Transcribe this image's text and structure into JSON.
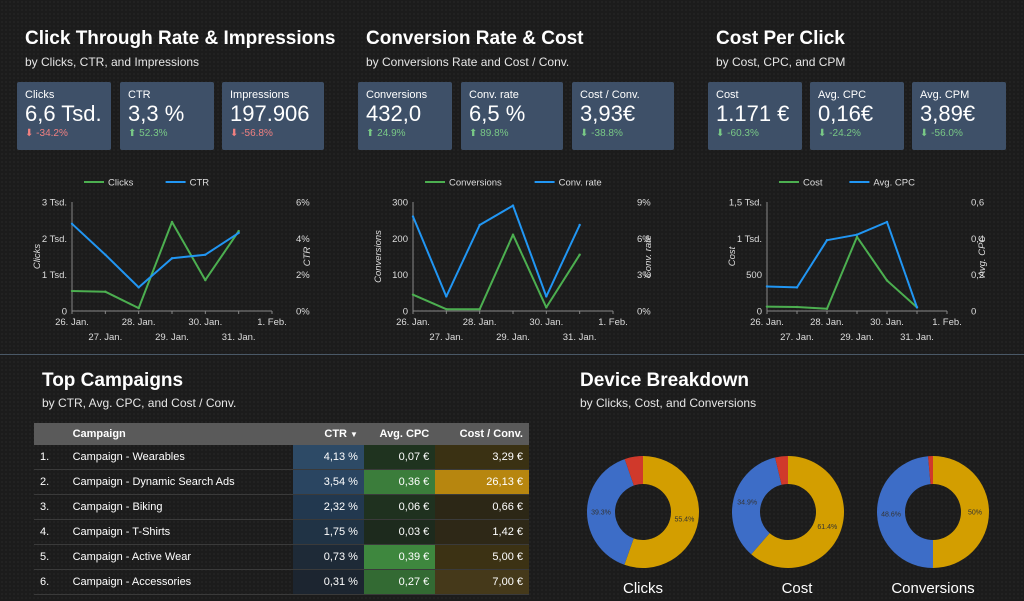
{
  "sections": {
    "ctr": {
      "title": "Click Through Rate & Impressions",
      "subtitle": "by Clicks, CTR, and Impressions"
    },
    "conv": {
      "title": "Conversion Rate & Cost",
      "subtitle": "by Conversions Rate and Cost / Conv."
    },
    "cpc": {
      "title": "Cost Per Click",
      "subtitle": "by Cost, CPC, and CPM"
    },
    "campaigns": {
      "title": "Top Campaigns",
      "subtitle": "by CTR, Avg. CPC, and Cost / Conv."
    },
    "device": {
      "title": "Device Breakdown",
      "subtitle": "by Clicks, Cost, and Conversions"
    }
  },
  "kpis": [
    {
      "label": "Clicks",
      "value": "6,6 Tsd.",
      "change": "-34.2%",
      "trend": "down",
      "color": "#f08080"
    },
    {
      "label": "CTR",
      "value": "3,3 %",
      "change": "52.3%",
      "trend": "up",
      "color": "#79c986"
    },
    {
      "label": "Impressions",
      "value": "197.906",
      "change": "-56.8%",
      "trend": "down",
      "color": "#f08080"
    },
    {
      "label": "Conversions",
      "value": "432,0",
      "change": "24.9%",
      "trend": "up",
      "color": "#79c986"
    },
    {
      "label": "Conv. rate",
      "value": "6,5 %",
      "change": "89.8%",
      "trend": "up",
      "color": "#79c986"
    },
    {
      "label": "Cost / Conv.",
      "value": "3,93€",
      "change": "-38.8%",
      "trend": "down",
      "color": "#79c986"
    },
    {
      "label": "Cost",
      "value": "1.171 €",
      "change": "-60.3%",
      "trend": "down",
      "color": "#79c986"
    },
    {
      "label": "Avg. CPC",
      "value": "0,16€",
      "change": "-24.2%",
      "trend": "down",
      "color": "#79c986"
    },
    {
      "label": "Avg. CPM",
      "value": "3,89€",
      "change": "-56.0%",
      "trend": "down",
      "color": "#79c986"
    }
  ],
  "chart_data": [
    {
      "type": "line",
      "x": [
        "26. Jan.",
        "27. Jan.",
        "28. Jan.",
        "29. Jan.",
        "30. Jan.",
        "31. Jan.",
        "1. Feb."
      ],
      "x_ticks_top": [
        "26. Jan.",
        "28. Jan.",
        "30. Jan.",
        "1. Feb."
      ],
      "x_ticks_bottom": [
        "27. Jan.",
        "29. Jan.",
        "31. Jan."
      ],
      "ylabel": "Clicks",
      "ylabel_right": "CTR",
      "ylim": [
        0,
        3000
      ],
      "ylim_right": [
        0,
        6
      ],
      "y_ticks": [
        "0",
        "1 Tsd.",
        "2 Tsd.",
        "3 Tsd."
      ],
      "y_ticks_right": [
        "0%",
        "2%",
        "4%",
        "6%"
      ],
      "series": [
        {
          "name": "Clicks",
          "axis": "left",
          "color": "#4caf50",
          "x": [
            0,
            1,
            2,
            3,
            4,
            5
          ],
          "values": [
            550,
            530,
            80,
            2450,
            850,
            2200
          ]
        },
        {
          "name": "CTR",
          "axis": "right",
          "color": "#2196f3",
          "x": [
            0,
            1,
            2,
            3,
            4,
            5
          ],
          "values": [
            4.8,
            3.1,
            1.3,
            2.9,
            3.1,
            4.3
          ]
        }
      ]
    },
    {
      "type": "line",
      "x": [
        "26. Jan.",
        "27. Jan.",
        "28. Jan.",
        "29. Jan.",
        "30. Jan.",
        "31. Jan.",
        "1. Feb."
      ],
      "x_ticks_top": [
        "26. Jan.",
        "28. Jan.",
        "30. Jan.",
        "1. Feb."
      ],
      "x_ticks_bottom": [
        "27. Jan.",
        "29. Jan.",
        "31. Jan."
      ],
      "ylabel": "Conversions",
      "ylabel_right": "Conv. rate",
      "ylim": [
        0,
        300
      ],
      "ylim_right": [
        0,
        9
      ],
      "y_ticks": [
        "0",
        "100",
        "200",
        "300"
      ],
      "y_ticks_right": [
        "0%",
        "3%",
        "6%",
        "9%"
      ],
      "series": [
        {
          "name": "Conversions",
          "axis": "left",
          "color": "#4caf50",
          "x": [
            0,
            1,
            2,
            3,
            4,
            5
          ],
          "values": [
            45,
            5,
            5,
            210,
            10,
            155
          ]
        },
        {
          "name": "Conv. rate",
          "axis": "right",
          "color": "#2196f3",
          "x": [
            0,
            1,
            2,
            3,
            4,
            5
          ],
          "values": [
            7.8,
            1.2,
            7.1,
            8.7,
            1.2,
            7.1
          ]
        }
      ]
    },
    {
      "type": "line",
      "x": [
        "26. Jan.",
        "27. Jan.",
        "28. Jan.",
        "29. Jan.",
        "30. Jan.",
        "31. Jan.",
        "1. Feb."
      ],
      "x_ticks_top": [
        "26. Jan.",
        "28. Jan.",
        "30. Jan.",
        "1. Feb."
      ],
      "x_ticks_bottom": [
        "27. Jan.",
        "29. Jan.",
        "31. Jan."
      ],
      "ylabel": "Cost",
      "ylabel_right": "Avg. CPC",
      "ylim": [
        0,
        1500
      ],
      "ylim_right": [
        0,
        0.6
      ],
      "y_ticks": [
        "0",
        "500",
        "1 Tsd.",
        "1,5 Tsd."
      ],
      "y_ticks_right": [
        "0",
        "0,2",
        "0,4",
        "0,6"
      ],
      "series": [
        {
          "name": "Cost",
          "axis": "left",
          "color": "#4caf50",
          "x": [
            0,
            1,
            2,
            3,
            4,
            5
          ],
          "values": [
            60,
            55,
            30,
            1020,
            420,
            50
          ]
        },
        {
          "name": "Avg. CPC",
          "axis": "right",
          "color": "#2196f3",
          "x": [
            0,
            1,
            2,
            3,
            4,
            5
          ],
          "values": [
            0.135,
            0.13,
            0.39,
            0.42,
            0.49,
            0.02
          ]
        }
      ]
    },
    {
      "type": "pie",
      "name": "Clicks",
      "slices": [
        {
          "label": "55.4%",
          "value": 55.4,
          "color": "#d39e00"
        },
        {
          "label": "39.3%",
          "value": 39.3,
          "color": "#3d6dc7"
        },
        {
          "label": "",
          "value": 5.3,
          "color": "#d0392b"
        }
      ]
    },
    {
      "type": "pie",
      "name": "Cost",
      "slices": [
        {
          "label": "61.4%",
          "value": 61.4,
          "color": "#d39e00"
        },
        {
          "label": "34.9%",
          "value": 34.9,
          "color": "#3d6dc7"
        },
        {
          "label": "",
          "value": 3.7,
          "color": "#d0392b"
        }
      ]
    },
    {
      "type": "pie",
      "name": "Conversions",
      "slices": [
        {
          "label": "50%",
          "value": 50,
          "color": "#d39e00"
        },
        {
          "label": "48.6%",
          "value": 48.6,
          "color": "#3d6dc7"
        },
        {
          "label": "",
          "value": 1.4,
          "color": "#d0392b"
        }
      ]
    }
  ],
  "campaigns": {
    "headers": {
      "num": "",
      "name": "Campaign",
      "ctr": "CTR",
      "cpc": "Avg. CPC",
      "cost": "Cost / Conv."
    },
    "sort_indicator": "▼",
    "rows": [
      {
        "num": "1.",
        "name": "Campaign - Wearables",
        "ctr": "4,13 %",
        "cpc": "0,07 €",
        "cost": "3,29 €",
        "ctr_bg": "#2d4a66",
        "cpc_bg": "#1f331f",
        "cost_bg": "#3a3113"
      },
      {
        "num": "2.",
        "name": "Campaign - Dynamic Search Ads",
        "ctr": "3,54 %",
        "cpc": "0,36 €",
        "cost": "26,13 €",
        "ctr_bg": "#2a4561",
        "cpc_bg": "#3b7d3b",
        "cost_bg": "#b7860f"
      },
      {
        "num": "3.",
        "name": "Campaign - Biking",
        "ctr": "2,32 %",
        "cpc": "0,06 €",
        "cost": "0,66 €",
        "ctr_bg": "#22384f",
        "cpc_bg": "#1f311f",
        "cost_bg": "#2c2716"
      },
      {
        "num": "4.",
        "name": "Campaign - T-Shirts",
        "ctr": "1,75 %",
        "cpc": "0,03 €",
        "cost": "1,42 €",
        "ctr_bg": "#203345",
        "cpc_bg": "#1d2a1d",
        "cost_bg": "#2e2817"
      },
      {
        "num": "5.",
        "name": "Campaign - Active Wear",
        "ctr": "0,73 %",
        "cpc": "0,39 €",
        "cost": "5,00 €",
        "ctr_bg": "#1e2a37",
        "cpc_bg": "#3e873e",
        "cost_bg": "#3c3214"
      },
      {
        "num": "6.",
        "name": "Campaign - Accessories",
        "ctr": "0,31 %",
        "cpc": "0,27 €",
        "cost": "7,00 €",
        "ctr_bg": "#1c2530",
        "cpc_bg": "#336a33",
        "cost_bg": "#45391a"
      }
    ]
  }
}
